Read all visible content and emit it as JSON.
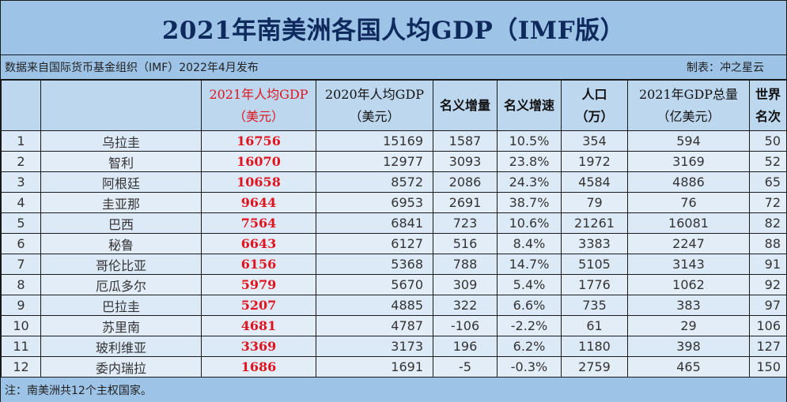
{
  "title": "2021年南美洲各国人均GDP（IMF版）",
  "source": "数据来自国际货币基金组织（IMF）2022年4月发布",
  "author": "制表：冲之星云",
  "colors": {
    "title_text": "#0e2a5c",
    "bar_bg": "#9dc3e6",
    "header_bg": "#bdd7ee",
    "row_bg": "#dce9f6",
    "highlight_red": "#e0141e"
  },
  "headers": {
    "rank": "",
    "country": "",
    "gdp_pc_2021": [
      "2021年人均GDP",
      "（美元）"
    ],
    "gdp_pc_2020": [
      "2020年人均GDP",
      "（美元）"
    ],
    "nominal_increase": "名义增量",
    "nominal_growth": "名义增速",
    "population": [
      "人口",
      "（万）"
    ],
    "gdp_total_2021": [
      "2021年GDP总量",
      "（亿美元）"
    ],
    "world_rank": [
      "世界",
      "名次"
    ]
  },
  "rows": [
    {
      "rank": "1",
      "country": "乌拉圭",
      "gdp_pc_2021": "16756",
      "gdp_pc_2020": "15169",
      "nominal_increase": "1587",
      "nominal_growth": "10.5%",
      "population": "354",
      "gdp_total_2021": "594",
      "world_rank": "50"
    },
    {
      "rank": "2",
      "country": "智利",
      "gdp_pc_2021": "16070",
      "gdp_pc_2020": "12977",
      "nominal_increase": "3093",
      "nominal_growth": "23.8%",
      "population": "1972",
      "gdp_total_2021": "3169",
      "world_rank": "52"
    },
    {
      "rank": "3",
      "country": "阿根廷",
      "gdp_pc_2021": "10658",
      "gdp_pc_2020": "8572",
      "nominal_increase": "2086",
      "nominal_growth": "24.3%",
      "population": "4584",
      "gdp_total_2021": "4886",
      "world_rank": "65"
    },
    {
      "rank": "4",
      "country": "圭亚那",
      "gdp_pc_2021": "9644",
      "gdp_pc_2020": "6953",
      "nominal_increase": "2691",
      "nominal_growth": "38.7%",
      "population": "79",
      "gdp_total_2021": "76",
      "world_rank": "72"
    },
    {
      "rank": "5",
      "country": "巴西",
      "gdp_pc_2021": "7564",
      "gdp_pc_2020": "6841",
      "nominal_increase": "723",
      "nominal_growth": "10.6%",
      "population": "21261",
      "gdp_total_2021": "16081",
      "world_rank": "82"
    },
    {
      "rank": "6",
      "country": "秘鲁",
      "gdp_pc_2021": "6643",
      "gdp_pc_2020": "6127",
      "nominal_increase": "516",
      "nominal_growth": "8.4%",
      "population": "3383",
      "gdp_total_2021": "2247",
      "world_rank": "88"
    },
    {
      "rank": "7",
      "country": "哥伦比亚",
      "gdp_pc_2021": "6156",
      "gdp_pc_2020": "5368",
      "nominal_increase": "788",
      "nominal_growth": "14.7%",
      "population": "5105",
      "gdp_total_2021": "3143",
      "world_rank": "91"
    },
    {
      "rank": "8",
      "country": "厄瓜多尔",
      "gdp_pc_2021": "5979",
      "gdp_pc_2020": "5670",
      "nominal_increase": "309",
      "nominal_growth": "5.4%",
      "population": "1776",
      "gdp_total_2021": "1062",
      "world_rank": "92"
    },
    {
      "rank": "9",
      "country": "巴拉圭",
      "gdp_pc_2021": "5207",
      "gdp_pc_2020": "4885",
      "nominal_increase": "322",
      "nominal_growth": "6.6%",
      "population": "735",
      "gdp_total_2021": "383",
      "world_rank": "97"
    },
    {
      "rank": "10",
      "country": "苏里南",
      "gdp_pc_2021": "4681",
      "gdp_pc_2020": "4787",
      "nominal_increase": "-106",
      "nominal_growth": "-2.2%",
      "population": "61",
      "gdp_total_2021": "29",
      "world_rank": "106"
    },
    {
      "rank": "11",
      "country": "玻利维亚",
      "gdp_pc_2021": "3369",
      "gdp_pc_2020": "3173",
      "nominal_increase": "196",
      "nominal_growth": "6.2%",
      "population": "1180",
      "gdp_total_2021": "398",
      "world_rank": "127"
    },
    {
      "rank": "12",
      "country": "委内瑞拉",
      "gdp_pc_2021": "1686",
      "gdp_pc_2020": "1691",
      "nominal_increase": "-5",
      "nominal_growth": "-0.3%",
      "population": "2759",
      "gdp_total_2021": "465",
      "world_rank": "150"
    }
  ],
  "footnote": "注：南美洲共12个主权国家。"
}
